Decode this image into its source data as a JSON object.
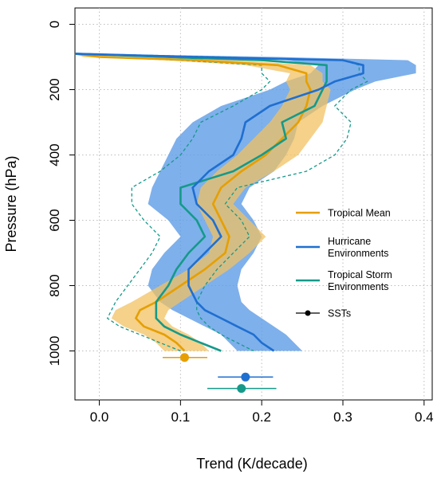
{
  "chart_data": {
    "type": "line",
    "title": "",
    "xlabel": "Trend (K/decade)",
    "ylabel": "Pressure (hPa)",
    "xlim": [
      -0.03,
      0.41
    ],
    "ylim": [
      1150,
      -50
    ],
    "y_reversed": true,
    "grid": true,
    "legend_position": "right",
    "x_ticks": [
      0,
      0.1,
      0.2,
      0.3,
      0.4
    ],
    "x_tick_labels": [
      "0.0",
      "0.1",
      "0.2",
      "0.3",
      "0.4"
    ],
    "y_ticks": [
      0,
      200,
      400,
      600,
      800,
      1000
    ],
    "y_tick_labels": [
      "0",
      "200",
      "400",
      "600",
      "800",
      "1000"
    ],
    "legend": [
      {
        "label_lines": [
          "Tropical Mean"
        ],
        "color": "#E69F00",
        "marker": false
      },
      {
        "label_lines": [
          "Hurricane",
          "Environments"
        ],
        "color": "#1F6FD1",
        "marker": false
      },
      {
        "label_lines": [
          "Tropical Storm",
          "Environments"
        ],
        "color": "#159A8A",
        "marker": false
      },
      {
        "label_lines": [
          "SSTs"
        ],
        "color": "#000000",
        "marker": true
      }
    ],
    "pressure": [
      90,
      100,
      110,
      125,
      150,
      175,
      200,
      250,
      300,
      350,
      400,
      450,
      500,
      550,
      600,
      650,
      700,
      750,
      800,
      850,
      875,
      900,
      925,
      950,
      975,
      1000
    ],
    "series": [
      {
        "name": "Tropical Mean",
        "color": "#E69F00",
        "band_color": "#F2C261",
        "mean": [
          -0.05,
          0.0,
          0.12,
          0.22,
          0.255,
          0.255,
          0.26,
          0.255,
          0.245,
          0.225,
          0.205,
          0.175,
          0.15,
          0.14,
          0.15,
          0.16,
          0.155,
          0.13,
          0.1,
          0.07,
          0.05,
          0.045,
          0.055,
          0.08,
          0.095,
          0.105
        ],
        "low": [
          -0.05,
          -0.02,
          0.08,
          0.18,
          0.235,
          0.23,
          0.235,
          0.225,
          0.21,
          0.19,
          0.17,
          0.145,
          0.125,
          0.12,
          0.13,
          0.14,
          0.135,
          0.11,
          0.075,
          0.04,
          0.02,
          0.015,
          0.03,
          0.055,
          0.07,
          0.08
        ],
        "high": [
          -0.04,
          0.03,
          0.17,
          0.26,
          0.275,
          0.275,
          0.285,
          0.28,
          0.275,
          0.26,
          0.245,
          0.215,
          0.18,
          0.165,
          0.185,
          0.205,
          0.185,
          0.16,
          0.13,
          0.1,
          0.085,
          0.08,
          0.09,
          0.11,
          0.125,
          0.135
        ]
      },
      {
        "name": "Hurricane Environments",
        "color": "#1F6FD1",
        "band_color": "#5E9CE6",
        "mean": [
          -0.03,
          0.12,
          0.3,
          0.325,
          0.325,
          0.29,
          0.27,
          0.21,
          0.18,
          0.175,
          0.165,
          0.135,
          0.115,
          0.12,
          0.14,
          0.15,
          0.13,
          0.11,
          0.11,
          0.12,
          0.13,
          0.15,
          0.17,
          0.19,
          0.2,
          0.215
        ],
        "low": [
          -0.03,
          0.06,
          0.23,
          0.27,
          0.26,
          0.23,
          0.21,
          0.15,
          0.115,
          0.095,
          0.085,
          0.075,
          0.065,
          0.06,
          0.085,
          0.1,
          0.08,
          0.065,
          0.06,
          0.075,
          0.09,
          0.11,
          0.13,
          0.15,
          0.16,
          0.17
        ],
        "high": [
          -0.02,
          0.22,
          0.38,
          0.39,
          0.39,
          0.34,
          0.315,
          0.275,
          0.245,
          0.24,
          0.23,
          0.215,
          0.185,
          0.175,
          0.19,
          0.2,
          0.19,
          0.175,
          0.17,
          0.175,
          0.185,
          0.2,
          0.215,
          0.23,
          0.24,
          0.25
        ]
      },
      {
        "name": "Tropical Storm Environments",
        "color": "#159A8A",
        "band_color": "#159A8A",
        "mean": [
          -0.03,
          0.08,
          0.2,
          0.28,
          0.28,
          0.28,
          0.275,
          0.265,
          0.225,
          0.23,
          0.2,
          0.165,
          0.1,
          0.1,
          0.12,
          0.13,
          0.11,
          0.095,
          0.085,
          0.07,
          0.07,
          0.07,
          0.08,
          0.1,
          0.125,
          0.15
        ],
        "low": [
          -0.03,
          0.0,
          0.1,
          0.2,
          0.2,
          0.21,
          0.2,
          0.165,
          0.125,
          0.115,
          0.1,
          0.075,
          0.04,
          0.04,
          0.055,
          0.075,
          0.065,
          0.05,
          0.035,
          0.02,
          0.015,
          0.01,
          0.025,
          0.05,
          0.075,
          0.1
        ],
        "high": [
          -0.02,
          0.15,
          0.3,
          0.32,
          0.32,
          0.33,
          0.31,
          0.29,
          0.31,
          0.305,
          0.29,
          0.255,
          0.17,
          0.155,
          0.175,
          0.185,
          0.165,
          0.145,
          0.13,
          0.12,
          0.12,
          0.125,
          0.135,
          0.15,
          0.17,
          0.19
        ]
      }
    ],
    "sst_points": [
      {
        "name": "Tropical Mean",
        "color": "#E69F00",
        "pressure": 1020,
        "value": 0.105,
        "err_low": 0.078,
        "err_high": 0.133
      },
      {
        "name": "Hurricane Environments",
        "color": "#1F6FD1",
        "pressure": 1080,
        "value": 0.18,
        "err_low": 0.146,
        "err_high": 0.214
      },
      {
        "name": "Tropical Storm Environments",
        "color": "#159A8A",
        "pressure": 1115,
        "value": 0.175,
        "err_low": 0.133,
        "err_high": 0.218
      }
    ]
  }
}
